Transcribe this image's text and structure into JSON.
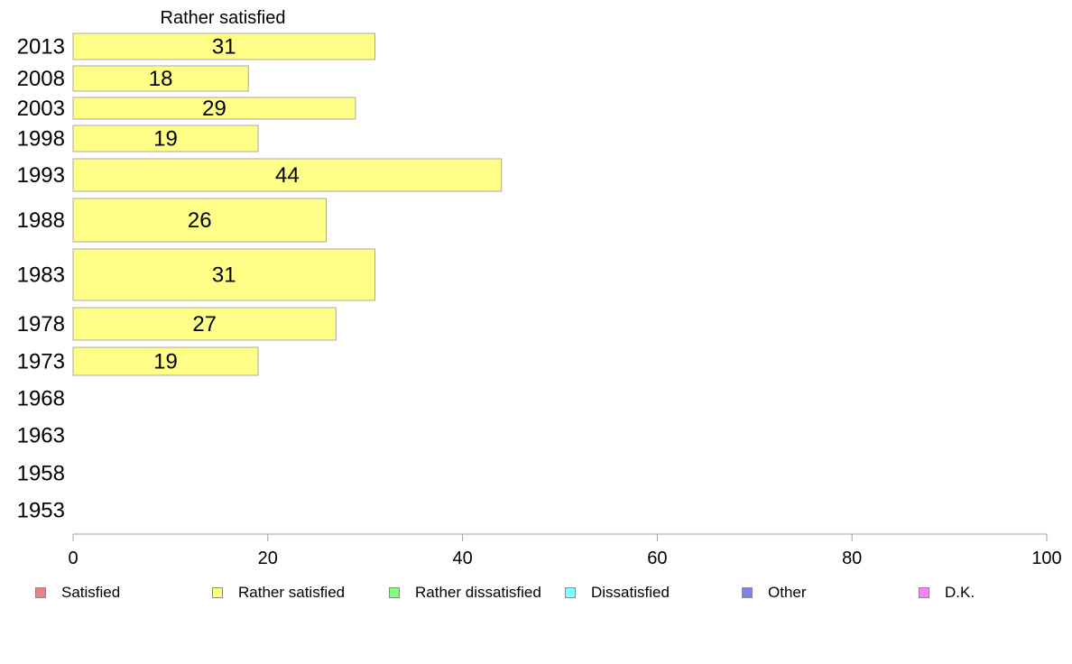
{
  "chart_data": {
    "type": "bar",
    "orientation": "horizontal",
    "title": "Rather satisfied",
    "categories": [
      "2013",
      "2008",
      "2003",
      "1998",
      "1993",
      "1988",
      "1983",
      "1978",
      "1973",
      "1968",
      "1963",
      "1958",
      "1953"
    ],
    "values": [
      31,
      18,
      29,
      19,
      44,
      26,
      31,
      27,
      19,
      null,
      null,
      null,
      null
    ],
    "data_labels": [
      "31",
      "18",
      "29",
      "19",
      "44",
      "26",
      "31",
      "27",
      "19",
      "",
      "",
      "",
      ""
    ],
    "xlim": [
      0,
      100
    ],
    "x_ticks": [
      "0",
      "20",
      "40",
      "60",
      "80",
      "100"
    ],
    "grid": false,
    "bar_color": "#ffff88",
    "bar_border_color": "#a8a8a8",
    "legend_position": "bottom",
    "legend": [
      {
        "label": "Satisfied",
        "color": "#f08080"
      },
      {
        "label": "Rather satisfied",
        "color": "#ffff80"
      },
      {
        "label": "Rather dissatisfied",
        "color": "#80ff80"
      },
      {
        "label": "Dissatisfied",
        "color": "#80ffff"
      },
      {
        "label": "Other",
        "color": "#8080f0"
      },
      {
        "label": "D.K.",
        "color": "#ff80ff"
      }
    ]
  }
}
